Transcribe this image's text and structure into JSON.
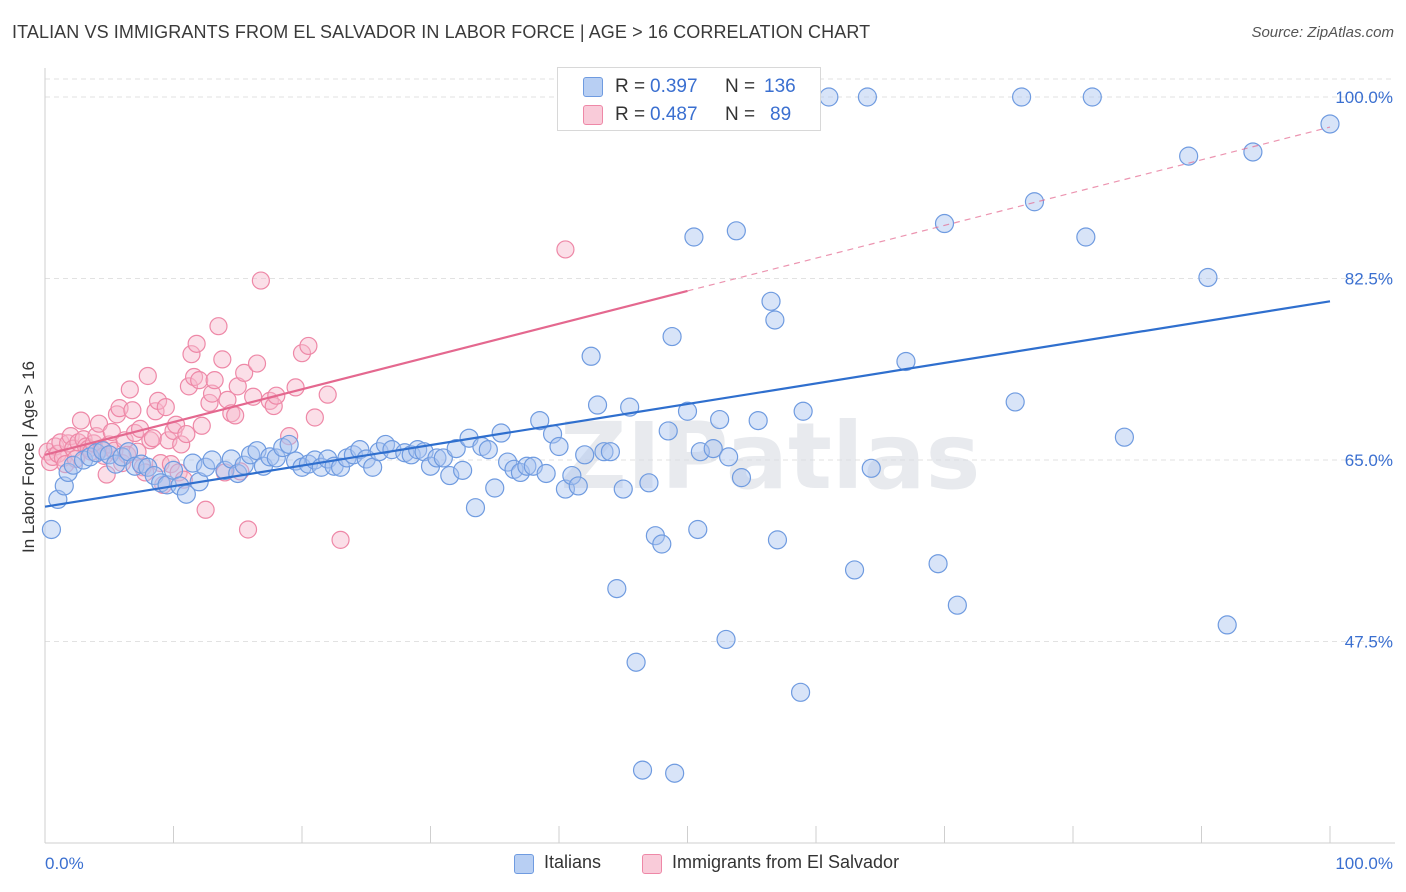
{
  "header": {
    "title": "ITALIAN VS IMMIGRANTS FROM EL SALVADOR IN LABOR FORCE | AGE > 16 CORRELATION CHART",
    "source": "Source: ZipAtlas.com"
  },
  "legend": {
    "r_label": "R =",
    "n_label": "N =",
    "italians": {
      "r": "0.397",
      "n": "136"
    },
    "salvador": {
      "r": "0.487",
      "n": "89"
    }
  },
  "bottom_legend": {
    "italians": "Italians",
    "salvador": "Immigrants from El Salvador"
  },
  "watermark": "ZIPatlas",
  "colors": {
    "italians_fill": "#a9c4ef",
    "italians_stroke": "#6f9be0",
    "italians_line": "#2f6fce",
    "salvador_fill": "#f6b9cb",
    "salvador_stroke": "#ee88a7",
    "salvador_line": "#e4688f",
    "axis_label": "#3a6fd0"
  },
  "chart_data": {
    "type": "scatter",
    "title": "ITALIAN VS IMMIGRANTS FROM EL SALVADOR IN LABOR FORCE | AGE > 16 CORRELATION CHART",
    "xlabel": "",
    "ylabel": "In Labor Force | Age > 16",
    "xlim": [
      0,
      100
    ],
    "ylim": [
      34,
      102
    ],
    "x_tick_labels": [
      "0.0%",
      "100.0%"
    ],
    "y_ticks": [
      47.5,
      65.0,
      82.5,
      100.0
    ],
    "y_tick_labels": [
      "47.5%",
      "65.0%",
      "82.5%",
      "100.0%"
    ],
    "grid": true,
    "series": [
      {
        "name": "Italians",
        "r": 0.397,
        "n": 136,
        "trend": {
          "x": [
            0,
            100
          ],
          "y": [
            60.5,
            80.3
          ]
        },
        "points": [
          [
            0.5,
            58.3
          ],
          [
            1,
            61.2
          ],
          [
            1.5,
            62.5
          ],
          [
            1.8,
            63.8
          ],
          [
            2.2,
            64.5
          ],
          [
            3,
            65
          ],
          [
            3.5,
            65.3
          ],
          [
            4,
            65.7
          ],
          [
            4.5,
            65.9
          ],
          [
            5,
            65.5
          ],
          [
            5.5,
            64.6
          ],
          [
            6,
            65.3
          ],
          [
            6.5,
            65.8
          ],
          [
            7,
            64.4
          ],
          [
            7.5,
            64.6
          ],
          [
            8,
            64.3
          ],
          [
            8.5,
            63.5
          ],
          [
            9,
            62.8
          ],
          [
            9.5,
            62.6
          ],
          [
            10,
            64
          ],
          [
            10.5,
            62.5
          ],
          [
            11,
            61.7
          ],
          [
            11.5,
            64.7
          ],
          [
            12,
            62.9
          ],
          [
            12.5,
            64.3
          ],
          [
            13,
            65
          ],
          [
            14,
            64
          ],
          [
            14.5,
            65.1
          ],
          [
            15,
            63.7
          ],
          [
            15.5,
            64.5
          ],
          [
            16,
            65.5
          ],
          [
            16.5,
            65.9
          ],
          [
            17,
            64.4
          ],
          [
            17.5,
            65.3
          ],
          [
            18,
            65.2
          ],
          [
            18.5,
            66.2
          ],
          [
            19,
            66.5
          ],
          [
            19.5,
            64.9
          ],
          [
            20,
            64.3
          ],
          [
            20.5,
            64.6
          ],
          [
            21,
            65
          ],
          [
            21.5,
            64.3
          ],
          [
            22,
            65.1
          ],
          [
            22.5,
            64.4
          ],
          [
            23,
            64.3
          ],
          [
            23.5,
            65.2
          ],
          [
            24,
            65.5
          ],
          [
            24.5,
            66
          ],
          [
            25,
            65.1
          ],
          [
            25.5,
            64.3
          ],
          [
            26,
            65.8
          ],
          [
            26.5,
            66.5
          ],
          [
            27,
            66
          ],
          [
            28,
            65.7
          ],
          [
            28.5,
            65.5
          ],
          [
            29,
            66
          ],
          [
            29.5,
            65.8
          ],
          [
            30,
            64.4
          ],
          [
            30.5,
            65.2
          ],
          [
            31,
            65.2
          ],
          [
            31.5,
            63.5
          ],
          [
            32,
            66.1
          ],
          [
            32.5,
            64
          ],
          [
            33,
            67.1
          ],
          [
            33.5,
            60.4
          ],
          [
            34,
            66.3
          ],
          [
            34.5,
            66
          ],
          [
            35,
            62.3
          ],
          [
            35.5,
            67.6
          ],
          [
            36,
            64.8
          ],
          [
            36.5,
            64.1
          ],
          [
            37,
            63.8
          ],
          [
            37.5,
            64.4
          ],
          [
            38,
            64.4
          ],
          [
            38.5,
            68.8
          ],
          [
            39,
            63.7
          ],
          [
            39.5,
            67.5
          ],
          [
            40,
            66.3
          ],
          [
            40.5,
            62.2
          ],
          [
            41,
            63.5
          ],
          [
            41.5,
            62.5
          ],
          [
            42,
            65.5
          ],
          [
            42.5,
            75
          ],
          [
            43,
            70.3
          ],
          [
            43.5,
            65.8
          ],
          [
            44,
            65.8
          ],
          [
            44.5,
            52.6
          ],
          [
            45,
            62.2
          ],
          [
            45.5,
            70.1
          ],
          [
            46,
            45.5
          ],
          [
            46.5,
            35.1
          ],
          [
            47,
            62.8
          ],
          [
            47.5,
            57.7
          ],
          [
            48,
            56.9
          ],
          [
            48.5,
            67.8
          ],
          [
            48.8,
            76.9
          ],
          [
            49,
            34.8
          ],
          [
            50,
            69.7
          ],
          [
            50.5,
            86.5
          ],
          [
            50.8,
            58.3
          ],
          [
            51,
            65.8
          ],
          [
            52,
            66.1
          ],
          [
            52.5,
            68.9
          ],
          [
            53,
            47.7
          ],
          [
            53.2,
            65.3
          ],
          [
            53.8,
            87.1
          ],
          [
            54.2,
            63.3
          ],
          [
            55.5,
            68.8
          ],
          [
            56,
            100
          ],
          [
            56.5,
            80.3
          ],
          [
            56.8,
            78.5
          ],
          [
            57,
            57.3
          ],
          [
            58.8,
            42.6
          ],
          [
            59,
            69.7
          ],
          [
            61,
            100
          ],
          [
            63,
            54.4
          ],
          [
            64,
            100
          ],
          [
            64.3,
            64.2
          ],
          [
            67,
            74.5
          ],
          [
            69.5,
            55
          ],
          [
            70,
            87.8
          ],
          [
            71,
            51
          ],
          [
            75.5,
            70.6
          ],
          [
            76,
            100
          ],
          [
            77,
            89.9
          ],
          [
            81,
            86.5
          ],
          [
            81.5,
            100
          ],
          [
            84,
            67.2
          ],
          [
            89,
            94.3
          ],
          [
            90.5,
            82.6
          ],
          [
            92,
            49.1
          ],
          [
            94,
            94.7
          ],
          [
            100,
            97.4
          ]
        ]
      },
      {
        "name": "Immigrants from El Salvador",
        "r": 0.487,
        "n": 89,
        "trend": {
          "x": [
            0,
            50
          ],
          "y": [
            65.5,
            81.3
          ]
        },
        "trend_extension": {
          "x": [
            50,
            100
          ],
          "y": [
            81.3,
            97.1
          ]
        },
        "points": [
          [
            0.2,
            65.8
          ],
          [
            0.4,
            64.8
          ],
          [
            0.6,
            65.3
          ],
          [
            0.8,
            66.3
          ],
          [
            1,
            65.6
          ],
          [
            1.2,
            66.7
          ],
          [
            1.4,
            65.2
          ],
          [
            1.6,
            64.6
          ],
          [
            1.8,
            66.6
          ],
          [
            2,
            67.3
          ],
          [
            2.2,
            66.1
          ],
          [
            2.4,
            65.1
          ],
          [
            2.6,
            66.7
          ],
          [
            2.8,
            68.8
          ],
          [
            3,
            67
          ],
          [
            3.2,
            66.3
          ],
          [
            3.4,
            66.1
          ],
          [
            3.6,
            65.8
          ],
          [
            3.8,
            66.6
          ],
          [
            4,
            67.3
          ],
          [
            4.2,
            68.5
          ],
          [
            4.4,
            66.1
          ],
          [
            4.6,
            65.4
          ],
          [
            4.8,
            63.6
          ],
          [
            5,
            66.5
          ],
          [
            5.2,
            67.7
          ],
          [
            5.4,
            65.9
          ],
          [
            5.6,
            69.4
          ],
          [
            5.8,
            70
          ],
          [
            6,
            64.7
          ],
          [
            6.2,
            66.9
          ],
          [
            6.4,
            65.5
          ],
          [
            6.6,
            71.8
          ],
          [
            6.8,
            69.8
          ],
          [
            7,
            67.6
          ],
          [
            7.2,
            65.8
          ],
          [
            7.4,
            68
          ],
          [
            7.6,
            64.3
          ],
          [
            7.8,
            63.8
          ],
          [
            8,
            73.1
          ],
          [
            8.2,
            66.9
          ],
          [
            8.4,
            67.1
          ],
          [
            8.6,
            69.7
          ],
          [
            8.8,
            70.7
          ],
          [
            9,
            64.7
          ],
          [
            9.2,
            62.6
          ],
          [
            9.4,
            70.1
          ],
          [
            9.6,
            66.9
          ],
          [
            9.8,
            64.6
          ],
          [
            10,
            67.8
          ],
          [
            10.2,
            68.4
          ],
          [
            10.4,
            63.8
          ],
          [
            10.6,
            66.5
          ],
          [
            10.8,
            63.1
          ],
          [
            11,
            67.5
          ],
          [
            11.2,
            72.1
          ],
          [
            11.4,
            75.2
          ],
          [
            11.6,
            73
          ],
          [
            11.8,
            76.2
          ],
          [
            12,
            72.7
          ],
          [
            12.2,
            68.3
          ],
          [
            12.5,
            60.2
          ],
          [
            12.8,
            70.5
          ],
          [
            13,
            71.4
          ],
          [
            13.2,
            72.7
          ],
          [
            13.5,
            77.9
          ],
          [
            13.8,
            74.7
          ],
          [
            14,
            63.8
          ],
          [
            14.2,
            70.8
          ],
          [
            14.5,
            69.5
          ],
          [
            14.8,
            69.3
          ],
          [
            15,
            72.1
          ],
          [
            15.2,
            63.9
          ],
          [
            15.5,
            73.4
          ],
          [
            15.8,
            58.3
          ],
          [
            16.2,
            71.1
          ],
          [
            16.5,
            74.3
          ],
          [
            16.8,
            82.3
          ],
          [
            17.5,
            70.7
          ],
          [
            17.8,
            70.2
          ],
          [
            18,
            71.2
          ],
          [
            19,
            67.3
          ],
          [
            19.5,
            72
          ],
          [
            20,
            75.3
          ],
          [
            20.5,
            76
          ],
          [
            21,
            69.1
          ],
          [
            22,
            71.3
          ],
          [
            23,
            57.3
          ],
          [
            40.5,
            85.3
          ]
        ]
      }
    ]
  }
}
